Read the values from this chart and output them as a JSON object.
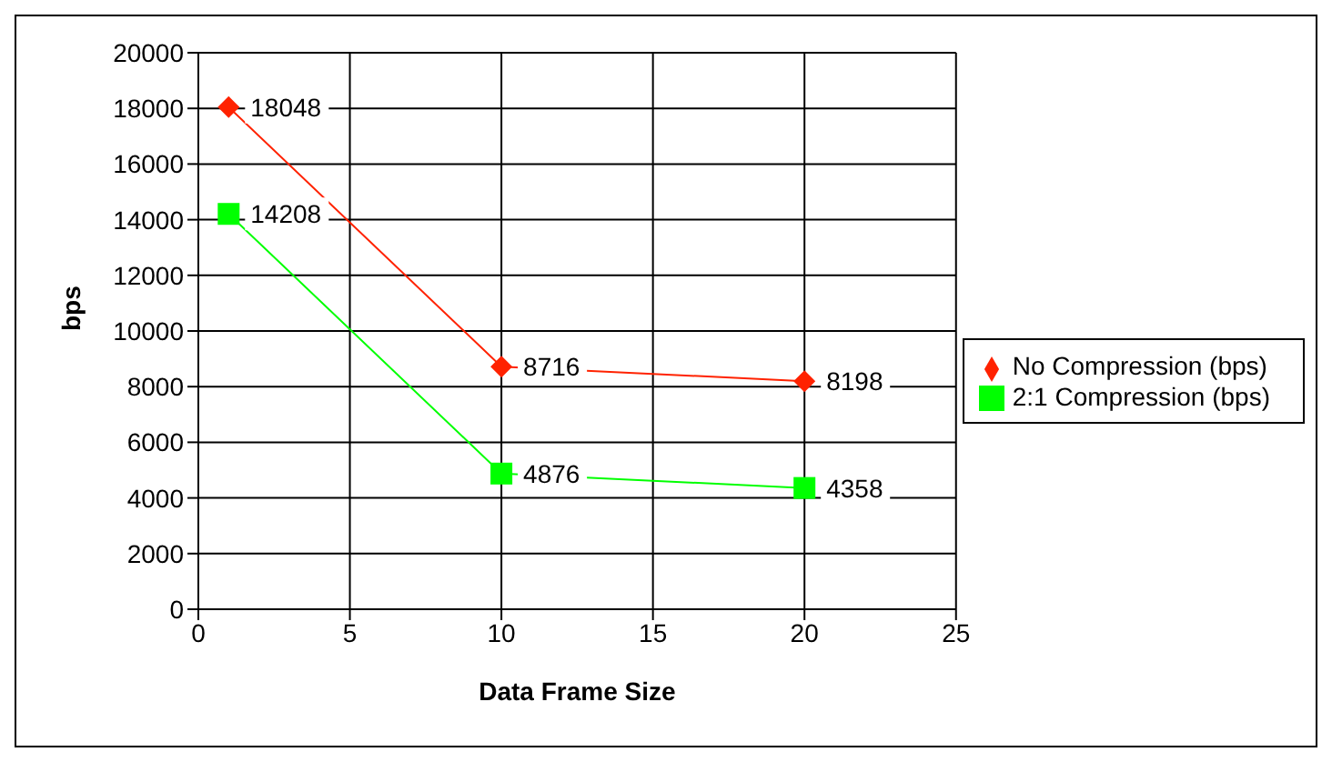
{
  "chart_data": {
    "type": "line",
    "xlabel": "Data Frame Size",
    "ylabel": "bps",
    "x": [
      1,
      10,
      20
    ],
    "series": [
      {
        "name": "No Compression (bps)",
        "color": "#ff2200",
        "marker": "diamond",
        "values": [
          18048,
          8716,
          8198
        ]
      },
      {
        "name": "2:1 Compression (bps)",
        "color": "#00ff00",
        "marker": "square",
        "values": [
          14208,
          4876,
          4358
        ]
      }
    ],
    "xlim": [
      0,
      25
    ],
    "xticks": [
      0,
      5,
      10,
      15,
      20,
      25
    ],
    "ylim": [
      0,
      20000
    ],
    "yticks": [
      0,
      2000,
      4000,
      6000,
      8000,
      10000,
      12000,
      14000,
      16000,
      18000,
      20000
    ],
    "grid": true,
    "legend": "right",
    "data_labels": true,
    "line_style": "solid"
  }
}
